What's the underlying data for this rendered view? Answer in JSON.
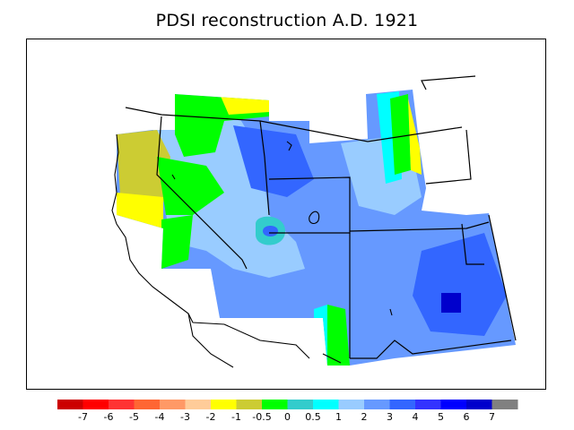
{
  "title": "PDSI reconstruction A.D. 1921",
  "legend": {
    "tick_labels": [
      "-7",
      "-6",
      "-5",
      "-4",
      "-3",
      "-2",
      "-1",
      "-0.5",
      "0",
      "0.5",
      "1",
      "2",
      "3",
      "4",
      "5",
      "6",
      "7"
    ],
    "colors": [
      "#cc0000",
      "#ff0000",
      "#ff3333",
      "#ff6633",
      "#ff9966",
      "#ffcc99",
      "#ffff00",
      "#cccc33",
      "#00ff00",
      "#33cccc",
      "#00ffff",
      "#99ccff",
      "#6699ff",
      "#3366ff",
      "#3333ff",
      "#0000ff",
      "#0000cc",
      "#808080"
    ]
  },
  "map": {
    "region": "US Southwest",
    "color_scale": "PDSI"
  }
}
